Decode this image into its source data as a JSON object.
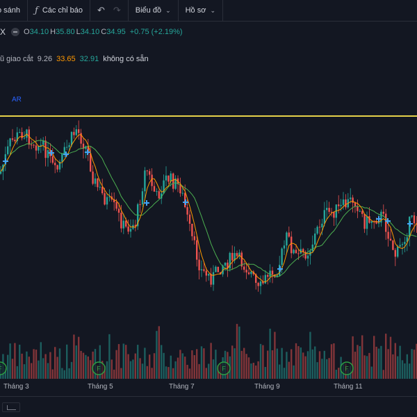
{
  "toolbar": {
    "compare_label": "o sánh",
    "indicators_label": "Các chỉ báo",
    "chart_type_label": "Biểu đồ",
    "profile_label": "Hồ sơ",
    "fx_icon": "fx-icon",
    "undo_icon": "undo-arrow-icon",
    "redo_icon": "redo-arrow-icon"
  },
  "symbol": {
    "name": "X",
    "open_key": "O",
    "open": "34.10",
    "high_key": "H",
    "high": "35.80",
    "low_key": "L",
    "low": "34.10",
    "close_key": "C",
    "close": "34.95",
    "change": "+0.75 (+2.19%)"
  },
  "indicator": {
    "name": "ũ giao cắt",
    "v1": "9.26",
    "v2": "33.65",
    "v3": "32.91",
    "status": "không có sẵn"
  },
  "annotation_label": "AR",
  "colors": {
    "up": "#26a69a",
    "down": "#ef5350",
    "ma_fast": "#ff9800",
    "ma_slow": "#4caf50",
    "cross_marker": "#42a5f5",
    "horizontal_line": "#e6d24a",
    "background": "#131722"
  },
  "x_axis": [
    "Tháng 3",
    "Tháng 5",
    "Tháng 7",
    "Tháng 9",
    "Tháng 11"
  ],
  "event_badge": "F"
}
